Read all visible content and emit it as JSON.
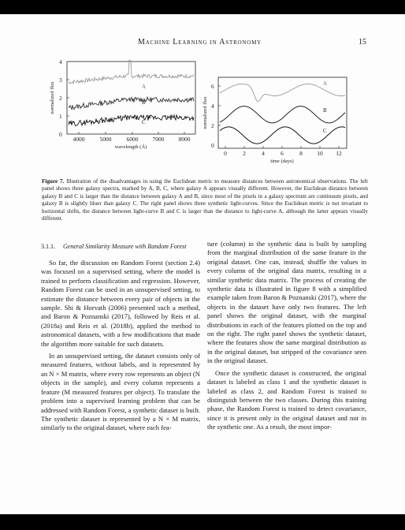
{
  "header": {
    "running_title": "Machine Learning in Astronomy",
    "page_number": "15"
  },
  "figure": {
    "left_panel": {
      "ylabel": "normalized flux",
      "xlabel": "wavelength (Å)",
      "yticks": [
        "0",
        "1",
        "2",
        "3",
        "4"
      ],
      "xticks": [
        "4000",
        "5000",
        "6000",
        "7000",
        "8000"
      ],
      "labels": [
        "A",
        "B",
        "C"
      ]
    },
    "right_panel": {
      "ylabel": "normalized flux",
      "xlabel": "time (days)",
      "yticks": [
        "0",
        "2",
        "4",
        "6"
      ],
      "xticks": [
        "0",
        "2",
        "4",
        "6",
        "8",
        "10",
        "12"
      ],
      "labels": [
        "A",
        "B",
        "C"
      ]
    }
  },
  "caption": {
    "label": "Figure 7.",
    "text": "Illustration of the disadvantages in using the Euclidean metric to measure distances between astronomical observations. The left panel shows three galaxy spectra, marked by A, B, C, where galaxy A appears visually different. However, the Euclidean distance between galaxy B and C is larger than the distance between galaxy A and B, since most of the pixels in a galaxy spectrum are continuum pixels, and galaxy B is slightly bluer than galaxy C. The right panel shows three synthetic light-curves. Since the Euclidean metric is not invariant to horizontal shifts, the distance between light-curve B and C is larger than the distance to light-curve A, although the latter appears visually different."
  },
  "section": {
    "number": "3.1.1.",
    "title": "General Similarity Measure with Random Forest"
  },
  "left_column": [
    "So far, the discussion on Random Forest (section 2.4) was focused on a supervised setting, where the model is trained to perform classification and regression. However, Random Forest can be used in an unsupervised setting, to estimate the distance between every pair of objects in the sample. Shi & Horvath (2006) presented such a method, and Baron & Poznanski (2017), followed by Reis et al. (2018a) and Reis et al. (2018b), applied the method to astronomical datasets, with a few modifications that made the algorithm more suitable for such datasets.",
    "In an unsupervised setting, the dataset consists only of measured features, without labels, and is represented by an N × M matrix, where every row represents an object (N objects in the sample), and every column represents a feature (M measured features per object). To translate the problem into a supervised learning problem that can be addressed with Random Forest, a synthetic dataset is built. The synthetic dataset is represented by a N × M matrix, similarly to the original dataset, where each fea-"
  ],
  "right_column": [
    "ture (column) in the synthetic data is built by sampling from the marginal distribution of the same feature in the original dataset. One can, instead, shuffle the values in every column of the original data matrix, resulting in a similar synthetic data matrix. The process of creating the synthetic data is illustrated in figure 8 with a simplified example taken from Baron & Poznanski (2017), where the objects in the dataset have only two features. The left panel shows the original dataset, with the marginal distributions in each of the features plotted on the top and on the right. The right panel shows the synthetic dataset, where the features show the same marginal distribution as in the original dataset, but stripped of the covariance seen in the original dataset.",
    "Once the synthetic dataset is constructed, the original dataset is labeled as class 1 and the synthetic dataset is labeled as class 2, and Random Forest is trained to distinguish between the two classes. During this training phase, the Random Forest is trained to detect covariance, since it is present only in the original dataset and not in the synthetic one. As a result, the most impor-"
  ]
}
